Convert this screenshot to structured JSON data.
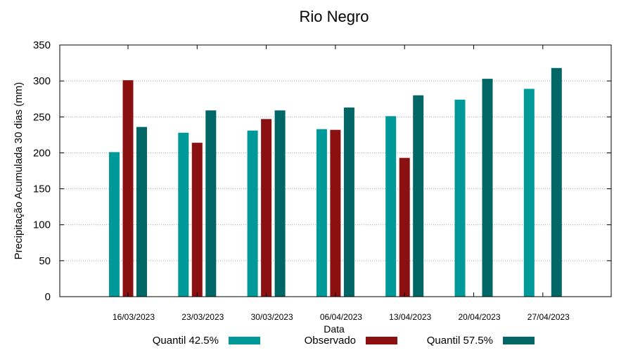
{
  "chart_data": {
    "type": "bar",
    "title": "Rio Negro",
    "xlabel": "Data",
    "ylabel": "Precipitação Acumulada 30 dias (mm)",
    "ylim": [
      0,
      350
    ],
    "yticks": [
      0,
      50,
      100,
      150,
      200,
      250,
      300,
      350
    ],
    "grid": true,
    "legend_position": "bottom",
    "categories": [
      "16/03/2023",
      "23/03/2023",
      "30/03/2023",
      "06/04/2023",
      "13/04/2023",
      "20/04/2023",
      "27/04/2023"
    ],
    "series": [
      {
        "name": "Quantil 42.5%",
        "color": "#009999",
        "values": [
          201,
          228,
          231,
          233,
          251,
          274,
          289
        ]
      },
      {
        "name": "Observado",
        "color": "#8b1111",
        "values": [
          301,
          214,
          247,
          232,
          193,
          null,
          null
        ]
      },
      {
        "name": "Quantil 57.5%",
        "color": "#006666",
        "values": [
          236,
          259,
          259,
          263,
          280,
          303,
          318
        ]
      }
    ]
  }
}
